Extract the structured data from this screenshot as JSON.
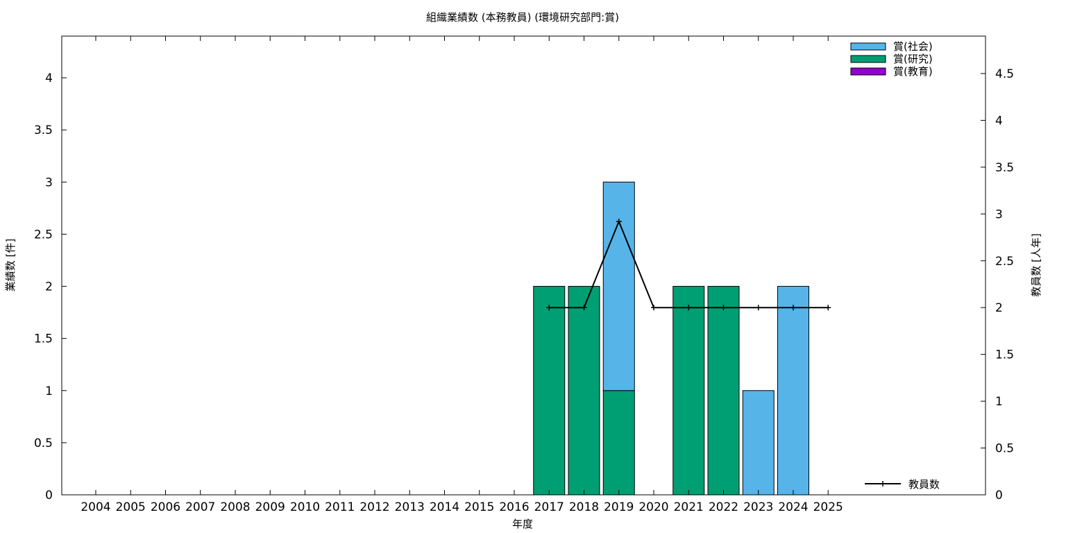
{
  "chart_data": {
    "type": "bar",
    "title": "組織業績数 (本務教員) (環境研究部門:賞)",
    "xlabel": "年度",
    "ylabel": "業績数 [件]",
    "y2label": "教員数 [人年]",
    "categories": [
      "2004",
      "2005",
      "2006",
      "2007",
      "2008",
      "2009",
      "2010",
      "2011",
      "2012",
      "2013",
      "2014",
      "2015",
      "2016",
      "2017",
      "2018",
      "2019",
      "2020",
      "2021",
      "2022",
      "2023",
      "2024",
      "2025"
    ],
    "stacked": true,
    "ylim": [
      0,
      4.4
    ],
    "y2lim": [
      0,
      4.9
    ],
    "yticks": [
      "0",
      "0.5",
      "1",
      "1.5",
      "2",
      "2.5",
      "3",
      "3.5",
      "4"
    ],
    "y2ticks": [
      "0",
      "0.5",
      "1",
      "1.5",
      "2",
      "2.5",
      "3",
      "3.5",
      "4",
      "4.5"
    ],
    "series": [
      {
        "name": "賞(研究)",
        "color": "#009e73",
        "values": [
          0,
          0,
          0,
          0,
          0,
          0,
          0,
          0,
          0,
          0,
          0,
          0,
          0,
          2,
          2,
          1,
          0,
          2,
          2,
          0,
          0,
          0
        ]
      },
      {
        "name": "賞(社会)",
        "color": "#56b4e9",
        "values": [
          0,
          0,
          0,
          0,
          0,
          0,
          0,
          0,
          0,
          0,
          0,
          0,
          0,
          0,
          0,
          2,
          0,
          0,
          0,
          1,
          2,
          0
        ]
      },
      {
        "name": "賞(教育)",
        "color": "#9400d3",
        "values": [
          0,
          0,
          0,
          0,
          0,
          0,
          0,
          0,
          0,
          0,
          0,
          0,
          0,
          0,
          0,
          0,
          0,
          0,
          0,
          0,
          0,
          0
        ]
      }
    ],
    "legend_order": [
      "賞(社会)",
      "賞(研究)",
      "賞(教育)"
    ],
    "legend_position": "top-right",
    "line_series": {
      "name": "教員数",
      "axis": "y2",
      "color": "#000000",
      "categories": [
        "2017",
        "2018",
        "2019",
        "2020",
        "2021",
        "2022",
        "2023",
        "2024",
        "2025"
      ],
      "values": [
        2,
        2,
        2.92,
        2,
        2,
        2,
        2,
        2,
        2
      ]
    },
    "grid": false
  }
}
